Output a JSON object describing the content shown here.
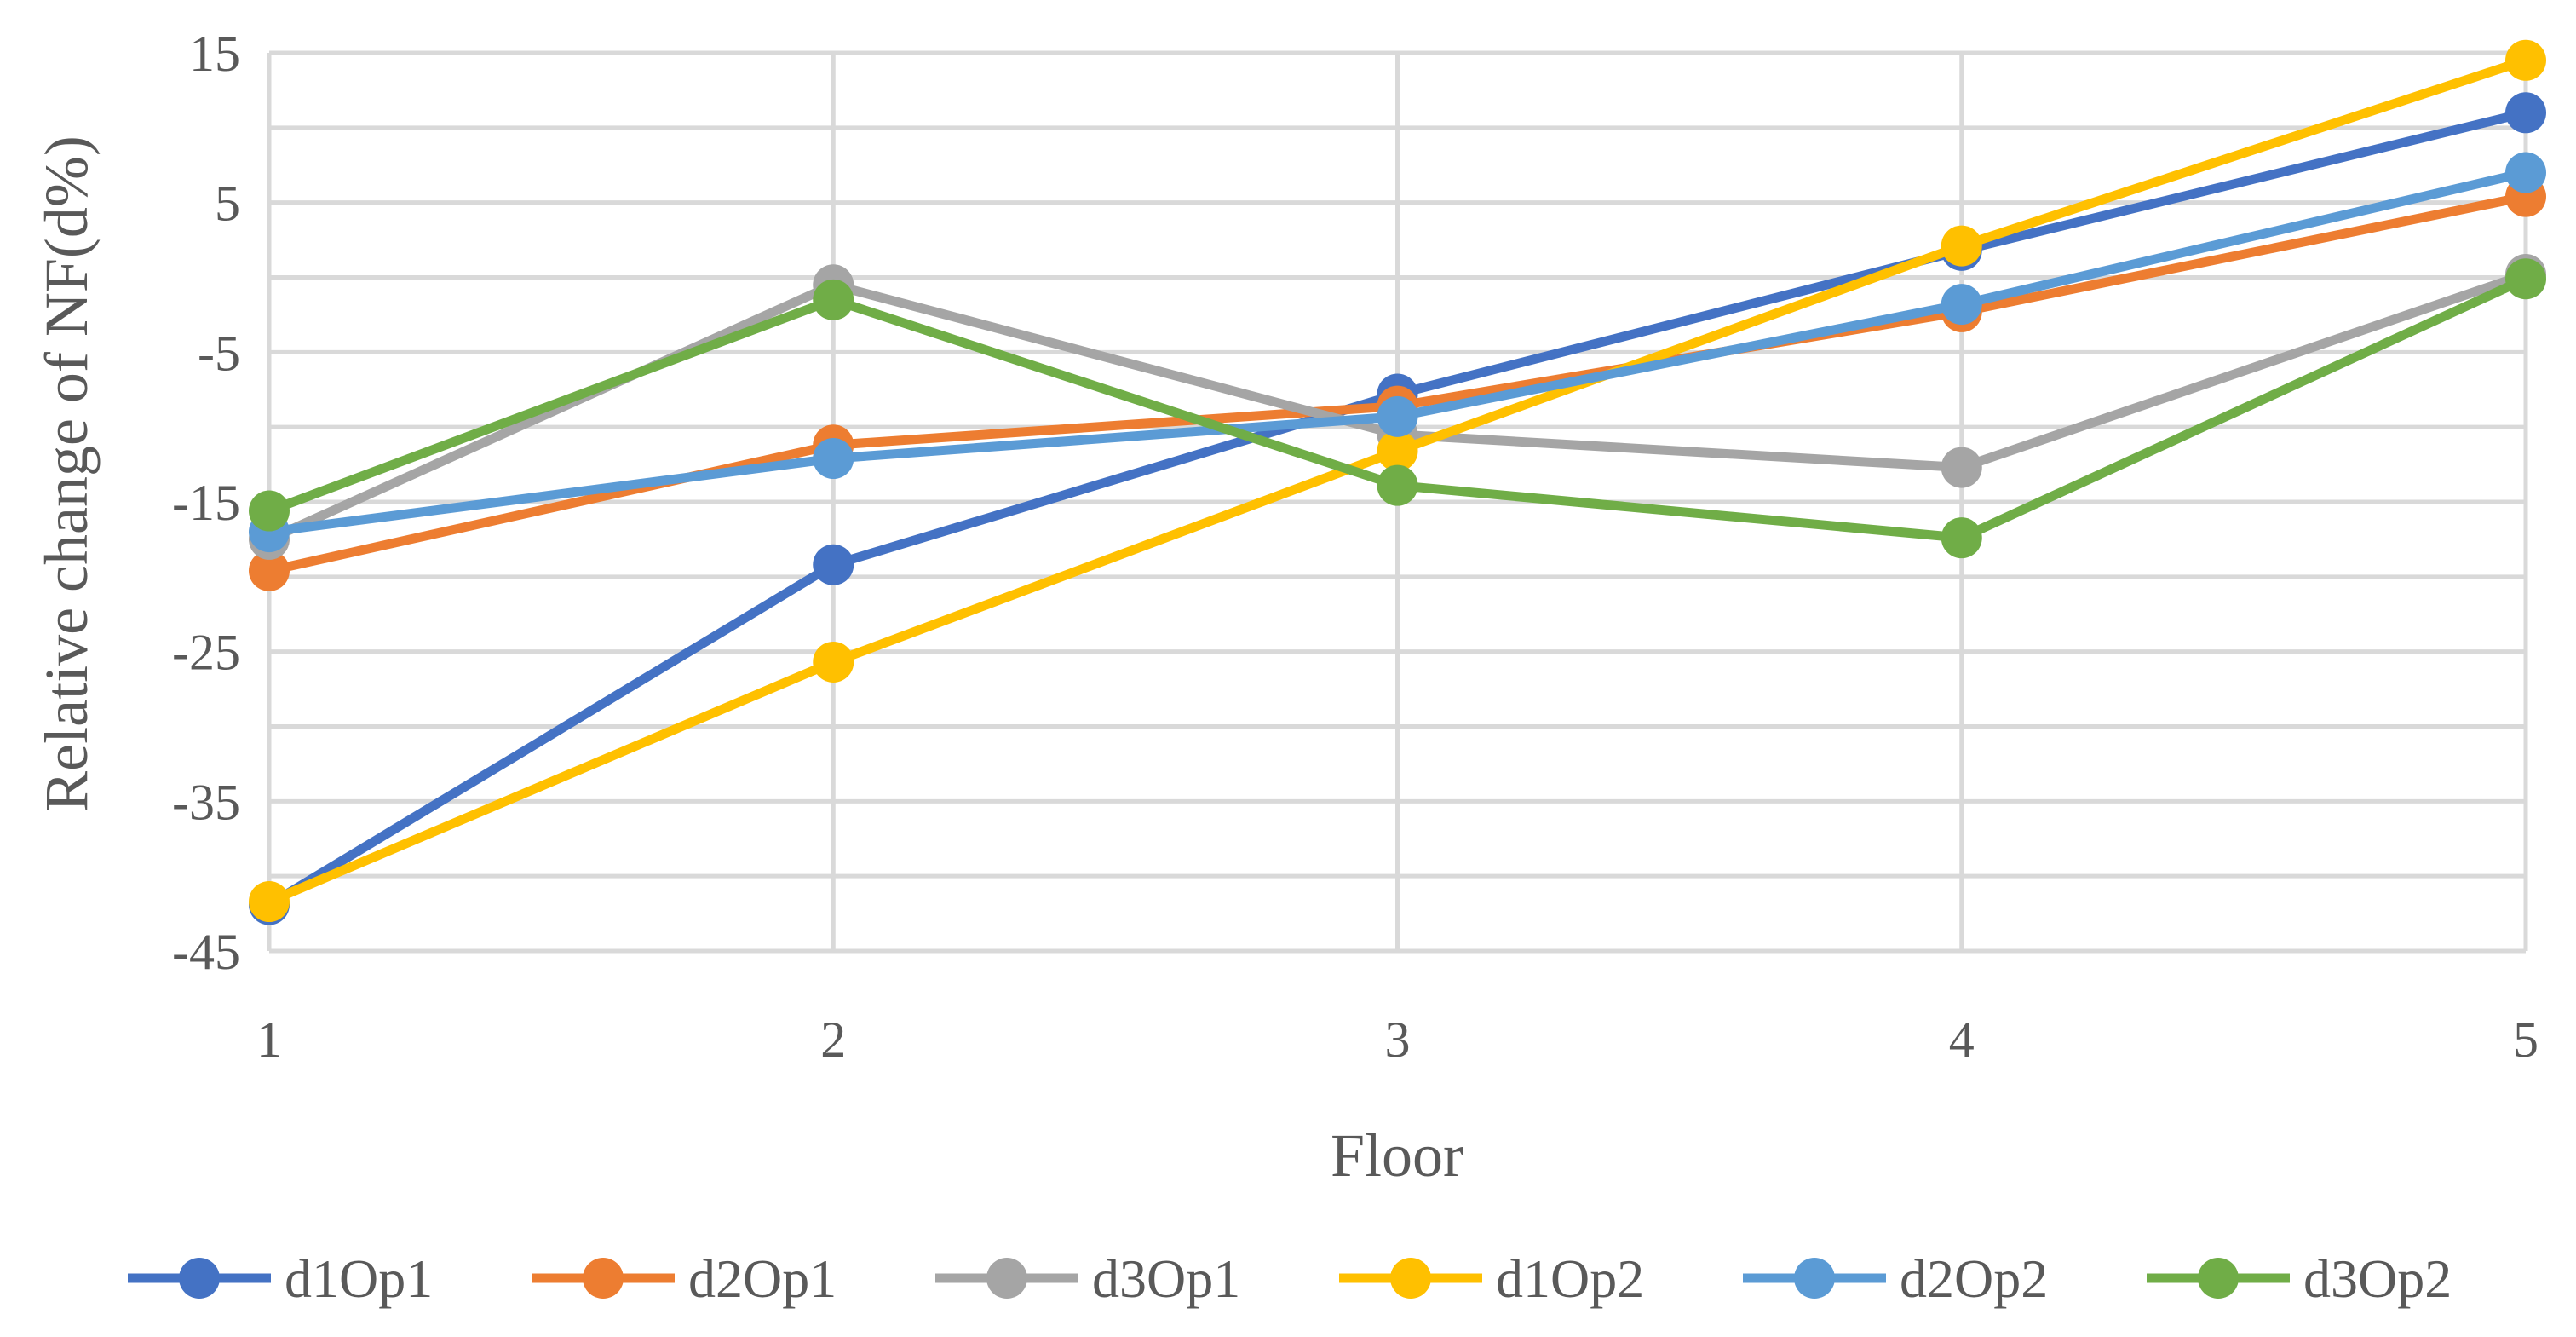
{
  "chart_data": {
    "type": "line",
    "title": "",
    "xlabel": "Floor",
    "ylabel": "Relative change of NF(d%)",
    "x": [
      1,
      2,
      3,
      4,
      5
    ],
    "x_tick_labels": [
      "1",
      "2",
      "3",
      "4",
      "5"
    ],
    "ylim": [
      -45,
      15
    ],
    "y_ticks": [
      15,
      5,
      -5,
      -15,
      -25,
      -35,
      -45
    ],
    "y_tick_labels": [
      "15",
      "5",
      "-5",
      "-15",
      "-25",
      "-35",
      "-45"
    ],
    "grid": true,
    "legend_position": "bottom",
    "series": [
      {
        "name": "d1Op1",
        "color": "#4472C4",
        "values": [
          -41.9,
          -19.2,
          -7.8,
          1.8,
          11.0
        ]
      },
      {
        "name": "d2Op1",
        "color": "#ED7D31",
        "values": [
          -19.6,
          -11.2,
          -8.6,
          -2.3,
          5.4
        ]
      },
      {
        "name": "d3Op1",
        "color": "#A5A5A5",
        "values": [
          -17.5,
          -0.5,
          -10.5,
          -12.7,
          0.2
        ]
      },
      {
        "name": "d1Op2",
        "color": "#FFC000",
        "values": [
          -41.7,
          -25.7,
          -11.6,
          2.1,
          14.5
        ]
      },
      {
        "name": "d2Op2",
        "color": "#5B9BD5",
        "values": [
          -17.0,
          -12.1,
          -9.3,
          -1.8,
          7.0
        ]
      },
      {
        "name": "d3Op2",
        "color": "#70AD47",
        "values": [
          -15.6,
          -1.5,
          -13.9,
          -17.4,
          -0.1
        ]
      }
    ]
  }
}
